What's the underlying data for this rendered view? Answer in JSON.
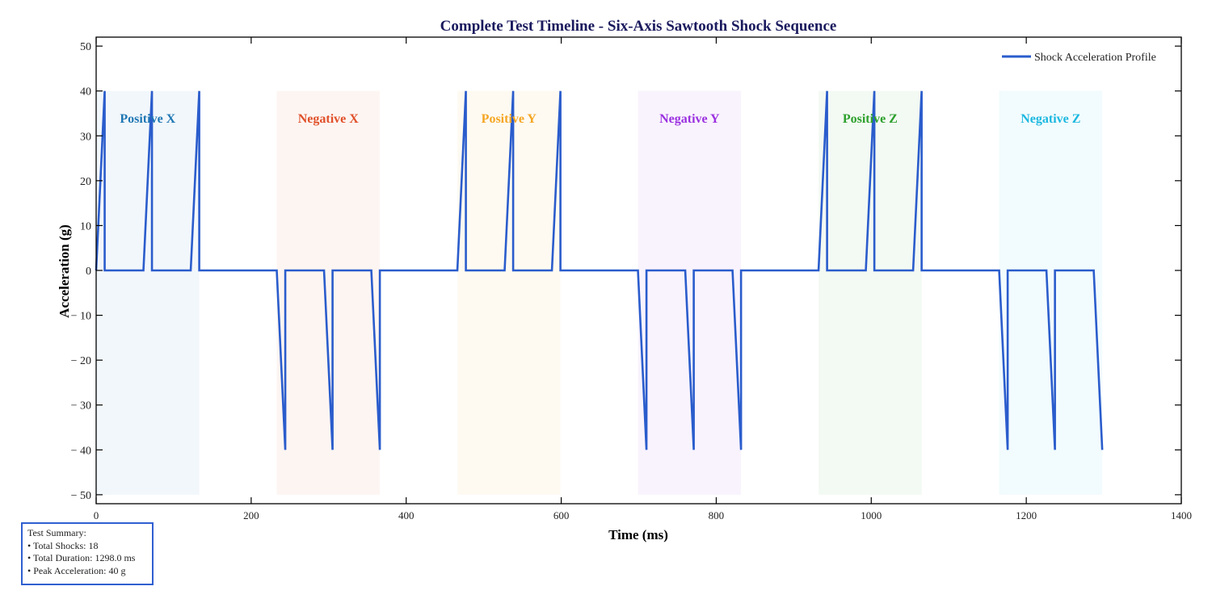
{
  "chart_data": {
    "type": "line",
    "title": "Complete Test Timeline - Six-Axis Sawtooth Shock Sequence",
    "xlabel": "Time (ms)",
    "ylabel": "Acceleration (g)",
    "xlim": [
      0,
      1400
    ],
    "ylim": [
      -52,
      52
    ],
    "xticks": [
      0,
      200,
      400,
      600,
      800,
      1000,
      1200,
      1400
    ],
    "yticks": [
      -50,
      -40,
      -30,
      -20,
      -10,
      0,
      10,
      20,
      30,
      40,
      50
    ],
    "grid": false,
    "legend_position": "top-right",
    "series": [
      {
        "name": "Shock Acceleration Profile",
        "color": "#2a5ccc",
        "x": [
          0,
          11,
          11,
          61,
          72,
          72,
          122,
          133,
          133,
          233,
          244,
          244,
          294,
          305,
          305,
          355,
          366,
          366,
          466,
          477,
          477,
          527,
          538,
          538,
          588,
          599,
          599,
          699,
          710,
          710,
          760,
          771,
          771,
          821,
          832,
          832,
          932,
          943,
          943,
          993,
          1004,
          1004,
          1054,
          1065,
          1065,
          1165,
          1176,
          1176,
          1226,
          1237,
          1237,
          1287,
          1298
        ],
        "y": [
          0,
          40,
          0,
          0,
          40,
          0,
          0,
          40,
          0,
          0,
          -40,
          0,
          0,
          -40,
          0,
          0,
          -40,
          0,
          0,
          40,
          0,
          0,
          40,
          0,
          0,
          40,
          0,
          0,
          -40,
          0,
          0,
          -40,
          0,
          0,
          -40,
          0,
          0,
          40,
          0,
          0,
          40,
          0,
          0,
          40,
          0,
          0,
          -40,
          0,
          0,
          -40,
          0,
          0,
          -40
        ]
      }
    ],
    "regions": [
      {
        "label": "Positive X",
        "start": 0,
        "end": 133,
        "color": "#1f77b4"
      },
      {
        "label": "Negative X",
        "start": 233,
        "end": 366,
        "color": "#e0502a"
      },
      {
        "label": "Positive Y",
        "start": 466,
        "end": 599,
        "color": "#f5a623"
      },
      {
        "label": "Negative Y",
        "start": 699,
        "end": 832,
        "color": "#9b30e0"
      },
      {
        "label": "Positive Z",
        "start": 932,
        "end": 1065,
        "color": "#2ca02c"
      },
      {
        "label": "Negative Z",
        "start": 1165,
        "end": 1298,
        "color": "#1cb8e0"
      }
    ]
  },
  "summary": {
    "heading": "Test Summary:",
    "lines": [
      "• Total Shocks: 18",
      "• Total Duration: 1298.0 ms",
      "• Peak Acceleration: 40 g"
    ]
  },
  "colors": {
    "title": "#1a1a5e",
    "axis": "#000000",
    "box_border": "#2f5fd0"
  }
}
